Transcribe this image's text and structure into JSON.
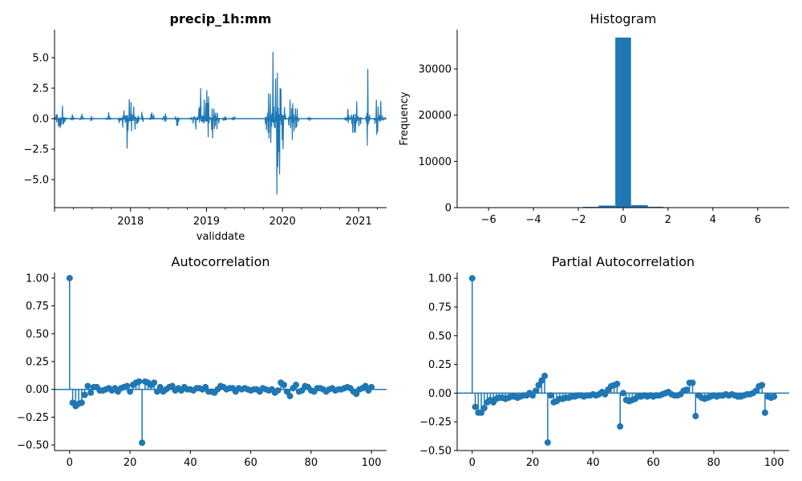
{
  "colors": {
    "series": "#1f77b4",
    "axis": "#000000"
  },
  "chart_data": [
    {
      "type": "line",
      "title": "precip_1h:mm",
      "xlabel": "validdate",
      "ylabel": "",
      "x_range": [
        "2017-01-01",
        "2021-05-15"
      ],
      "xticks": [
        "2018",
        "2019",
        "2020",
        "2021"
      ],
      "ylim": [
        -7.3,
        7.3
      ],
      "yticks": [
        -5.0,
        -2.5,
        0.0,
        2.5,
        5.0
      ],
      "ytick_labels": [
        "−5.0",
        "−2.5",
        "0.0",
        "2.5",
        "5.0"
      ],
      "bursts": [
        {
          "start": "2017-01-01",
          "end": "2017-03-01",
          "amp": 1.5
        },
        {
          "start": "2017-03-15",
          "end": "2017-04-10",
          "amp": 0.8
        },
        {
          "start": "2017-05-01",
          "end": "2017-05-25",
          "amp": 0.5
        },
        {
          "start": "2017-06-15",
          "end": "2017-07-10",
          "amp": 0.4
        },
        {
          "start": "2017-09-01",
          "end": "2017-10-05",
          "amp": 0.6
        },
        {
          "start": "2017-11-01",
          "end": "2018-02-15",
          "amp": 2.6
        },
        {
          "start": "2018-02-20",
          "end": "2018-03-05",
          "amp": 4.4
        },
        {
          "start": "2018-04-01",
          "end": "2018-04-25",
          "amp": 1.0
        },
        {
          "start": "2018-06-01",
          "end": "2018-06-25",
          "amp": 0.6
        },
        {
          "start": "2018-08-01",
          "end": "2018-08-25",
          "amp": 0.8
        },
        {
          "start": "2018-10-10",
          "end": "2019-03-10",
          "amp": 3.0
        },
        {
          "start": "2019-03-20",
          "end": "2019-04-10",
          "amp": 1.5
        },
        {
          "start": "2019-05-01",
          "end": "2019-05-20",
          "amp": 0.5
        },
        {
          "start": "2019-10-05",
          "end": "2020-01-20",
          "amp": 6.5
        },
        {
          "start": "2020-01-25",
          "end": "2020-03-20",
          "amp": 2.6
        },
        {
          "start": "2020-05-01",
          "end": "2020-05-25",
          "amp": 0.5
        },
        {
          "start": "2020-10-20",
          "end": "2021-01-20",
          "amp": 3.3
        },
        {
          "start": "2021-02-01",
          "end": "2021-02-25",
          "amp": 5.4
        },
        {
          "start": "2021-03-10",
          "end": "2021-05-10",
          "amp": 2.2
        }
      ]
    },
    {
      "type": "bar",
      "title": "Histogram",
      "xlabel": "",
      "ylabel": "Frequency",
      "xlim": [
        -7.4,
        7.4
      ],
      "ylim": [
        0,
        38500
      ],
      "xticks": [
        -6,
        -4,
        -2,
        0,
        2,
        4,
        6
      ],
      "xtick_labels": [
        "−6",
        "−4",
        "−2",
        "0",
        "2",
        "4",
        "6"
      ],
      "yticks": [
        0,
        10000,
        20000,
        30000
      ],
      "bins_edges": [
        -6.7,
        -6.0,
        -5.3,
        -4.6,
        -3.9,
        -3.2,
        -2.5,
        -1.8,
        -1.1,
        -0.35,
        0.35,
        1.1,
        1.8,
        2.5,
        3.2,
        3.9,
        4.6,
        5.3,
        6.0,
        6.7
      ],
      "counts": [
        1,
        2,
        3,
        5,
        10,
        25,
        70,
        180,
        450,
        36800,
        550,
        190,
        70,
        25,
        10,
        5,
        3,
        2,
        1
      ]
    },
    {
      "type": "stem",
      "title": "Autocorrelation",
      "xlabel": "",
      "ylabel": "",
      "xlim": [
        -5,
        105
      ],
      "ylim": [
        -0.55,
        1.05
      ],
      "xticks": [
        0,
        20,
        40,
        60,
        80,
        100
      ],
      "yticks": [
        -0.5,
        -0.25,
        0.0,
        0.25,
        0.5,
        0.75,
        1.0
      ],
      "ytick_labels": [
        "−0.50",
        "−0.25",
        "0.00",
        "0.25",
        "0.50",
        "0.75",
        "1.00"
      ],
      "lags": [
        0,
        1,
        2,
        3,
        4,
        5,
        6,
        7,
        8,
        9,
        10,
        11,
        12,
        13,
        14,
        15,
        16,
        17,
        18,
        19,
        20,
        21,
        22,
        23,
        24,
        25,
        26,
        27,
        28,
        29,
        30,
        31,
        32,
        33,
        34,
        35,
        36,
        37,
        38,
        39,
        40,
        41,
        42,
        43,
        44,
        45,
        46,
        47,
        48,
        49,
        50,
        51,
        52,
        53,
        54,
        55,
        56,
        57,
        58,
        59,
        60,
        61,
        62,
        63,
        64,
        65,
        66,
        67,
        68,
        69,
        70,
        71,
        72,
        73,
        74,
        75,
        76,
        77,
        78,
        79,
        80,
        81,
        82,
        83,
        84,
        85,
        86,
        87,
        88,
        89,
        90,
        91,
        92,
        93,
        94,
        95,
        96,
        97,
        98,
        99,
        100
      ],
      "values": [
        1.0,
        -0.12,
        -0.15,
        -0.13,
        -0.12,
        -0.05,
        0.03,
        -0.03,
        0.02,
        0.02,
        -0.01,
        -0.01,
        0.0,
        0.01,
        -0.01,
        0.01,
        -0.02,
        0.01,
        0.02,
        0.03,
        -0.02,
        0.04,
        0.06,
        0.07,
        -0.48,
        0.07,
        0.06,
        0.04,
        0.06,
        -0.02,
        0.02,
        -0.02,
        0.0,
        0.02,
        0.03,
        -0.01,
        0.01,
        -0.01,
        0.02,
        0.0,
        0.0,
        -0.01,
        0.01,
        0.01,
        0.0,
        0.02,
        -0.02,
        -0.02,
        -0.03,
        0.0,
        0.03,
        0.02,
        0.0,
        0.01,
        0.01,
        -0.02,
        0.01,
        0.0,
        0.01,
        0.0,
        -0.01,
        0.0,
        0.0,
        -0.02,
        0.01,
        0.0,
        -0.01,
        0.0,
        -0.03,
        -0.01,
        0.06,
        0.04,
        -0.02,
        -0.06,
        0.01,
        0.04,
        -0.02,
        -0.01,
        0.03,
        0.02,
        -0.01,
        -0.02,
        0.01,
        0.01,
        0.0,
        -0.02,
        0.0,
        0.01,
        -0.01,
        0.0,
        0.0,
        0.01,
        0.02,
        0.01,
        -0.02,
        -0.04,
        0.0,
        0.01,
        0.03,
        -0.01,
        0.02
      ]
    },
    {
      "type": "stem",
      "title": "Partial Autocorrelation",
      "xlabel": "",
      "ylabel": "",
      "xlim": [
        -5,
        105
      ],
      "ylim": [
        -0.5,
        1.05
      ],
      "xticks": [
        0,
        20,
        40,
        60,
        80,
        100
      ],
      "yticks": [
        -0.5,
        -0.25,
        0.0,
        0.25,
        0.5,
        0.75,
        1.0
      ],
      "ytick_labels": [
        "−0.50",
        "−0.25",
        "0.00",
        "0.25",
        "0.50",
        "0.75",
        "1.00"
      ],
      "lags": [
        0,
        1,
        2,
        3,
        4,
        5,
        6,
        7,
        8,
        9,
        10,
        11,
        12,
        13,
        14,
        15,
        16,
        17,
        18,
        19,
        20,
        21,
        22,
        23,
        24,
        25,
        26,
        27,
        28,
        29,
        30,
        31,
        32,
        33,
        34,
        35,
        36,
        37,
        38,
        39,
        40,
        41,
        42,
        43,
        44,
        45,
        46,
        47,
        48,
        49,
        50,
        51,
        52,
        53,
        54,
        55,
        56,
        57,
        58,
        59,
        60,
        61,
        62,
        63,
        64,
        65,
        66,
        67,
        68,
        69,
        70,
        71,
        72,
        73,
        74,
        75,
        76,
        77,
        78,
        79,
        80,
        81,
        82,
        83,
        84,
        85,
        86,
        87,
        88,
        89,
        90,
        91,
        92,
        93,
        94,
        95,
        96,
        97,
        98,
        99,
        100
      ],
      "values": [
        1.0,
        -0.12,
        -0.17,
        -0.17,
        -0.13,
        -0.08,
        -0.06,
        -0.08,
        -0.05,
        -0.04,
        -0.04,
        -0.05,
        -0.04,
        -0.03,
        -0.03,
        -0.04,
        -0.03,
        -0.02,
        -0.02,
        0.0,
        -0.02,
        0.02,
        0.07,
        0.11,
        0.15,
        -0.43,
        -0.02,
        -0.08,
        -0.07,
        -0.05,
        -0.05,
        -0.04,
        -0.04,
        -0.03,
        -0.03,
        -0.02,
        -0.02,
        -0.03,
        -0.02,
        -0.02,
        -0.01,
        -0.02,
        -0.01,
        0.01,
        -0.01,
        0.03,
        0.06,
        0.07,
        0.08,
        -0.29,
        0.0,
        -0.06,
        -0.07,
        -0.06,
        -0.05,
        -0.03,
        -0.03,
        -0.02,
        -0.03,
        -0.02,
        -0.03,
        -0.02,
        -0.02,
        -0.01,
        0.0,
        0.01,
        -0.01,
        -0.02,
        -0.02,
        -0.01,
        0.02,
        0.03,
        0.09,
        0.09,
        -0.2,
        -0.02,
        -0.04,
        -0.05,
        -0.04,
        -0.03,
        -0.02,
        -0.03,
        -0.02,
        -0.02,
        -0.01,
        -0.02,
        -0.01,
        -0.02,
        -0.03,
        -0.03,
        -0.02,
        -0.01,
        -0.01,
        0.0,
        0.02,
        0.06,
        0.07,
        -0.17,
        -0.03,
        -0.04,
        -0.03,
        -0.02
      ]
    }
  ]
}
